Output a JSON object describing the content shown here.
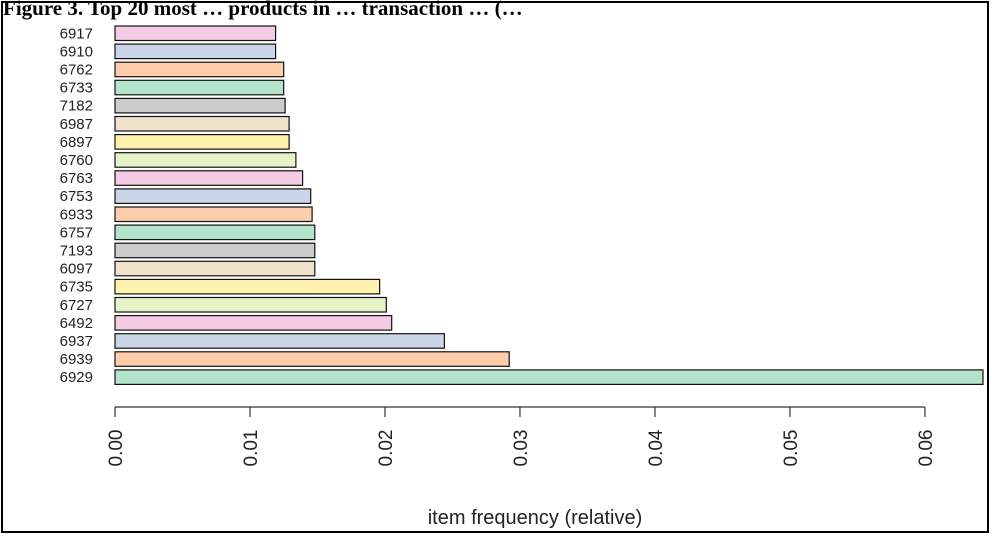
{
  "chart_data": {
    "type": "bar",
    "orientation": "horizontal",
    "title": "Figure 3. Top 20 most … products in … transaction … (…",
    "xlabel": "item frequency (relative)",
    "ylabel": "",
    "categories": [
      "6917",
      "6910",
      "6762",
      "6733",
      "7182",
      "6987",
      "6897",
      "6760",
      "6763",
      "6753",
      "6933",
      "6757",
      "7193",
      "6097",
      "6735",
      "6727",
      "6492",
      "6937",
      "6939",
      "6929"
    ],
    "values": [
      0.0119,
      0.0119,
      0.0125,
      0.0125,
      0.0126,
      0.0129,
      0.0129,
      0.0134,
      0.0139,
      0.0145,
      0.0146,
      0.0148,
      0.0148,
      0.0148,
      0.0196,
      0.0201,
      0.0205,
      0.0244,
      0.0292,
      0.0643
    ],
    "xlim": [
      0,
      0.0643
    ],
    "xticks": [
      "0.00",
      "0.01",
      "0.02",
      "0.03",
      "0.04",
      "0.05",
      "0.06"
    ],
    "grid": false,
    "legend": "none",
    "bar_colors": [
      "#f4cae4",
      "#cbd5e8",
      "#fdcdac",
      "#b3e2cd",
      "#cccccc",
      "#f1e2cc",
      "#fff2ae",
      "#e6f5c9",
      "#f4cae4",
      "#cbd5e8",
      "#fdcdac",
      "#b3e2cd",
      "#cccccc",
      "#f1e2cc",
      "#fff2ae",
      "#e6f5c9",
      "#f4cae4",
      "#cbd5e8",
      "#fdcdac",
      "#b3e2cd"
    ]
  }
}
